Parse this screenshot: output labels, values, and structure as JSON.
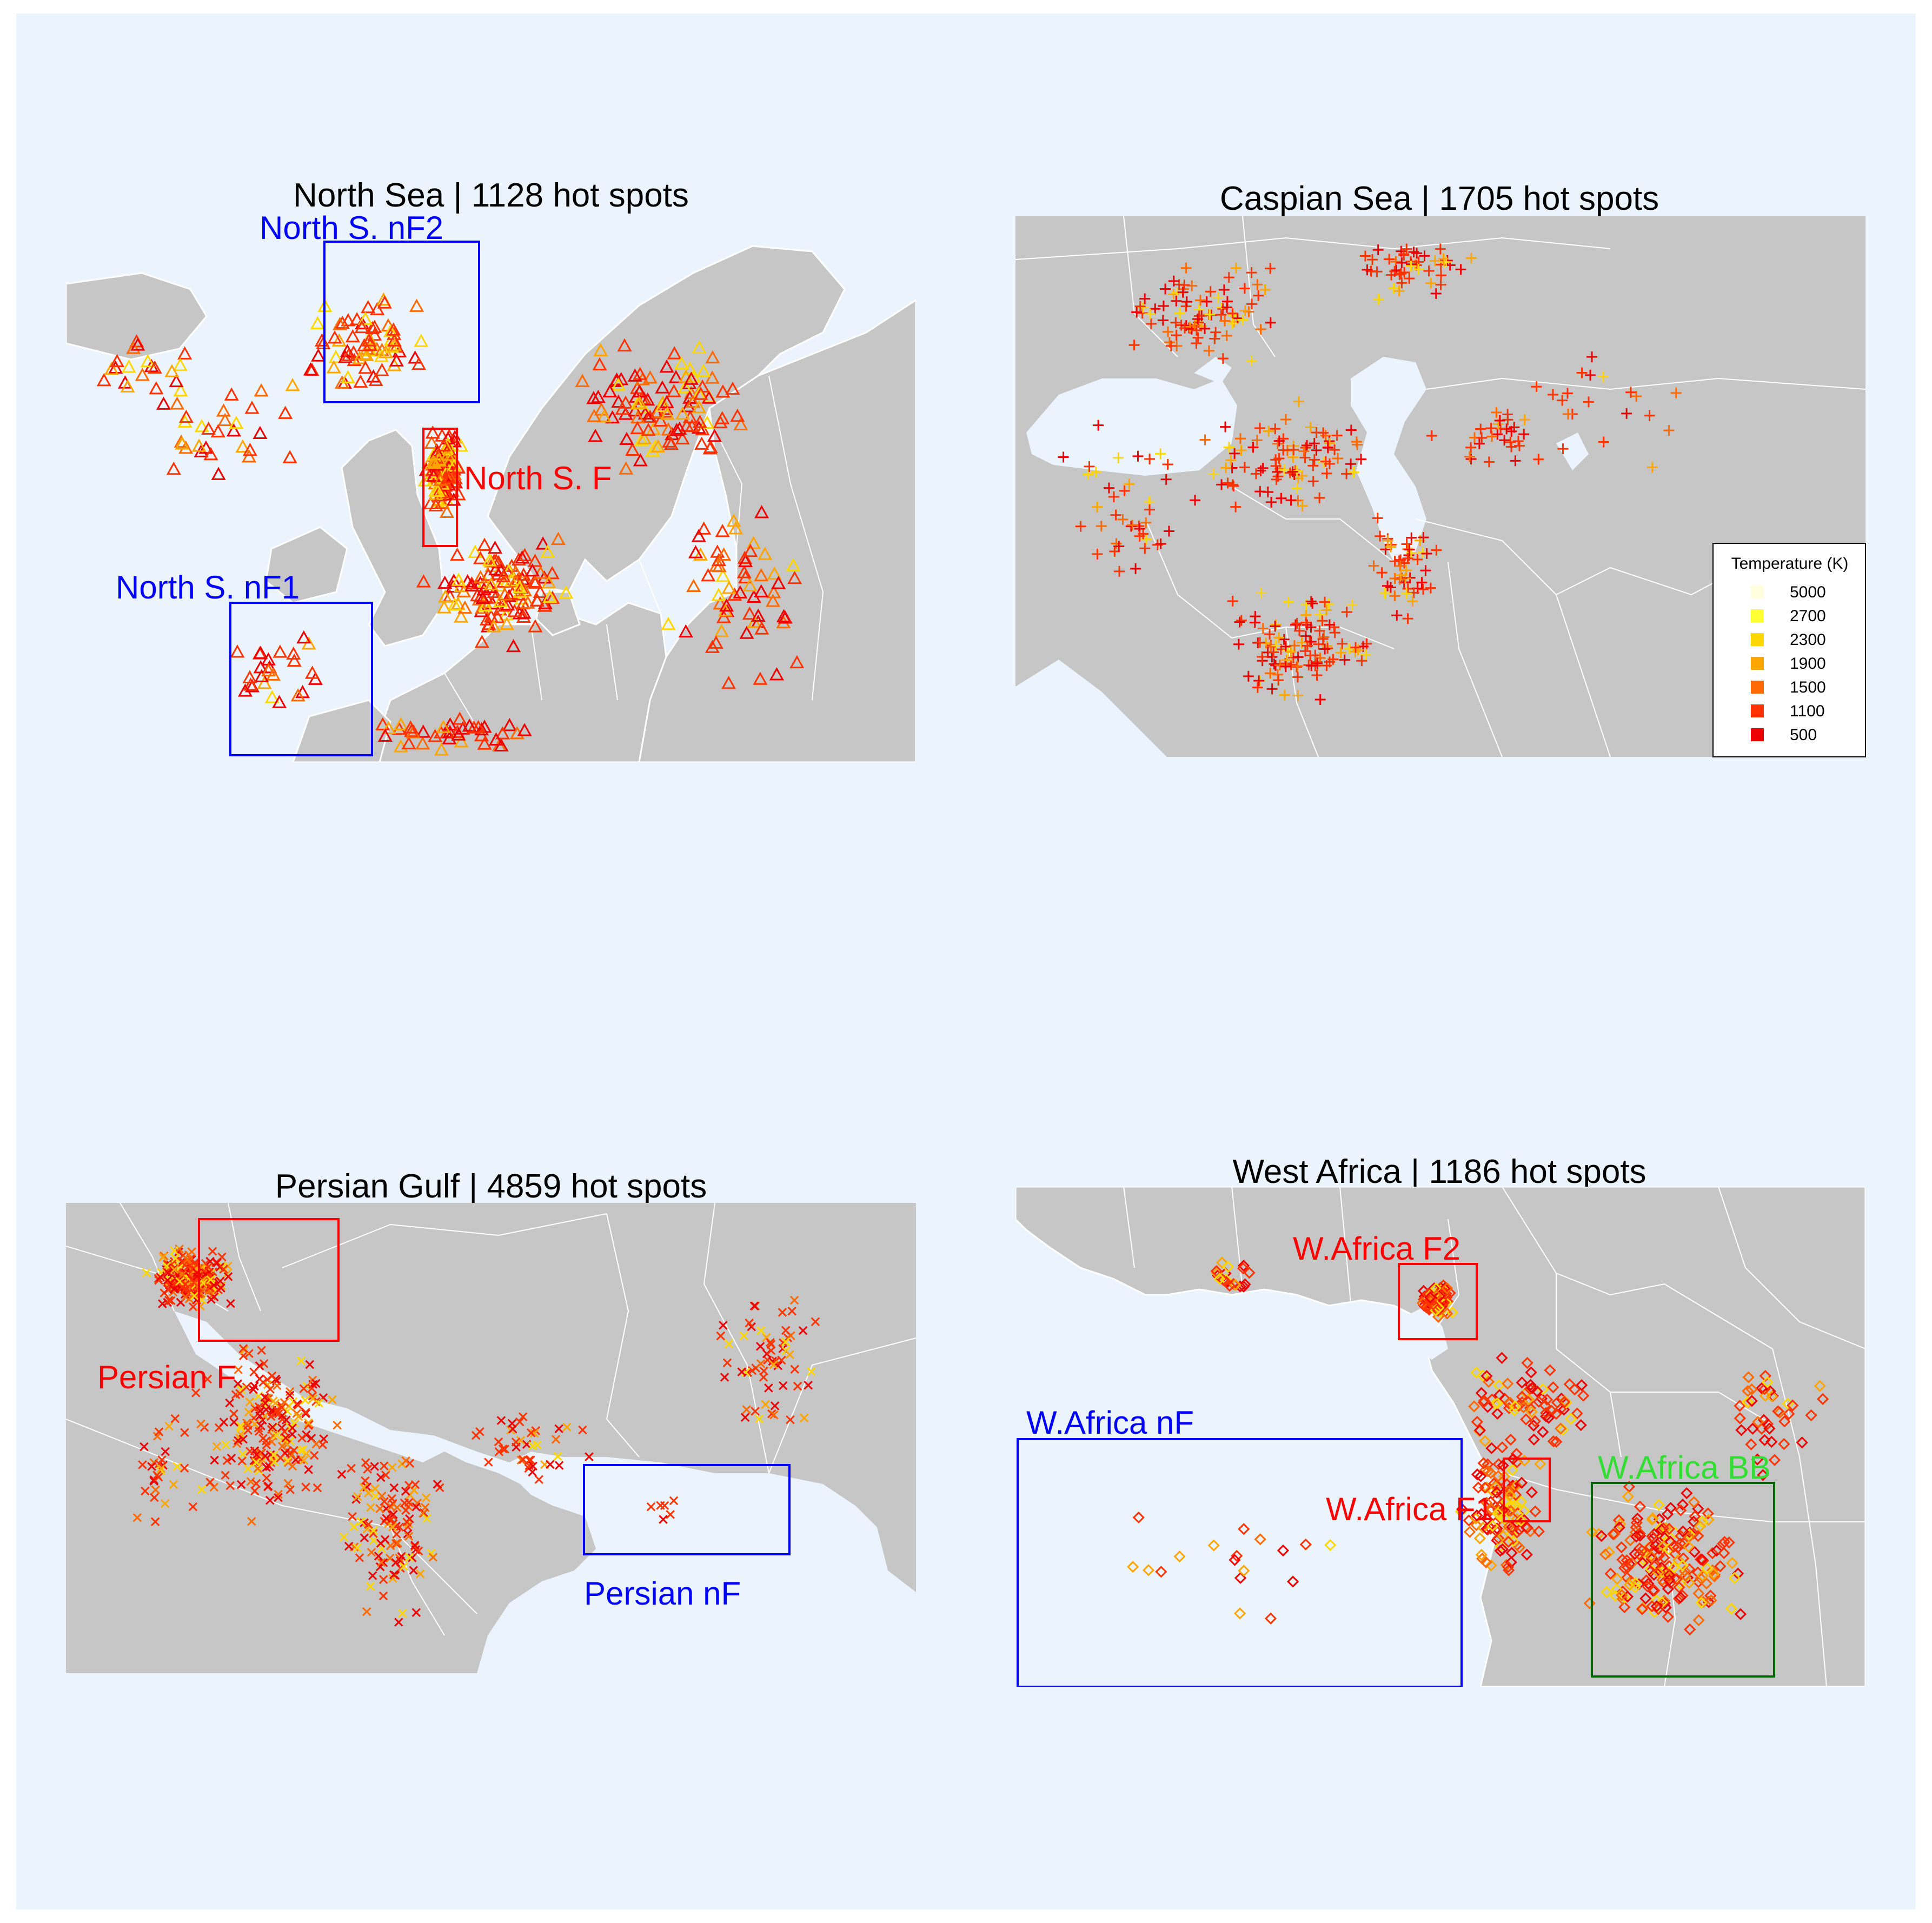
{
  "colors": {
    "page_bg": "#ebf4fc",
    "sea": "#ebf4fc",
    "land": "#c6c6c6",
    "border": "#ffffff",
    "box_blue": "#0000ff",
    "box_red": "#ff0000",
    "box_green": "#006400",
    "label_green": "#33dd33"
  },
  "legend": {
    "title": "Temperature (K)",
    "entries": [
      {
        "label": "5000",
        "color": "#ffffe0"
      },
      {
        "label": "2700",
        "color": "#ffff33"
      },
      {
        "label": "2300",
        "color": "#ffd700"
      },
      {
        "label": "1900",
        "color": "#ffa500"
      },
      {
        "label": "1500",
        "color": "#ff6a00"
      },
      {
        "label": "1100",
        "color": "#ff3300"
      },
      {
        "label": "500",
        "color": "#ee0000"
      }
    ]
  },
  "panels": [
    {
      "title": "North Sea | 1128 hot spots",
      "marker": "triangle",
      "marker_icon": "triangle-marker-icon",
      "boxes": [
        {
          "label": "North S. nF2",
          "color": "blue"
        },
        {
          "label": "North S. F",
          "color": "red"
        },
        {
          "label": "North S. nF1",
          "color": "blue"
        }
      ]
    },
    {
      "title": "Caspian Sea | 1705 hot spots",
      "marker": "plus",
      "marker_icon": "plus-marker-icon",
      "boxes": []
    },
    {
      "title": "Persian Gulf | 4859 hot spots",
      "marker": "cross",
      "marker_icon": "cross-marker-icon",
      "boxes": [
        {
          "label": "Persian F",
          "color": "red"
        },
        {
          "label": "Persian nF",
          "color": "blue"
        }
      ]
    },
    {
      "title": "West Africa | 1186 hot spots",
      "marker": "diamond",
      "marker_icon": "diamond-marker-icon",
      "boxes": [
        {
          "label": "W.Africa F2",
          "color": "red"
        },
        {
          "label": "W.Africa nF",
          "color": "blue"
        },
        {
          "label": "W.Africa F1",
          "color": "red"
        },
        {
          "label": "W.Africa BB",
          "color": "green"
        }
      ]
    }
  ]
}
